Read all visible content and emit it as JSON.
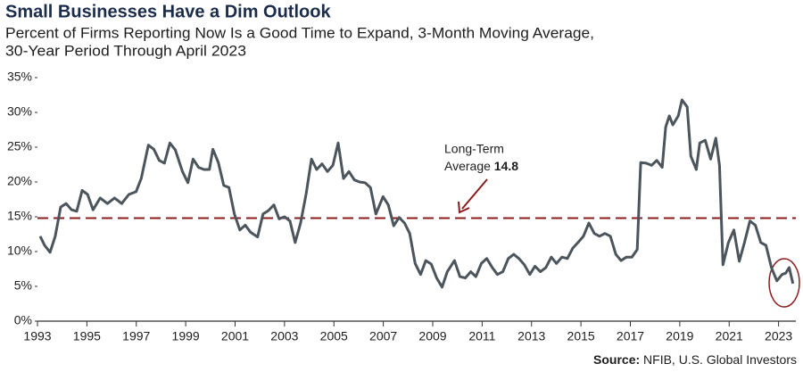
{
  "chart_data": {
    "type": "line",
    "title": "Small Businesses Have a Dim Outlook",
    "subtitle": [
      "Percent of Firms Reporting Now Is a Good Time to Expand, 3-Month Moving Average,",
      "30-Year Period Through April 2023"
    ],
    "source_label": "Source:",
    "source": "NFIB, U.S. Global Investors",
    "color": "#4b555b",
    "x": [
      1993.11,
      1993.29,
      1993.51,
      1993.72,
      1993.94,
      1994.16,
      1994.38,
      1994.59,
      1994.81,
      1995.03,
      1995.25,
      1995.54,
      1995.83,
      1996.12,
      1996.41,
      1996.7,
      1996.99,
      1997.2,
      1997.49,
      1997.71,
      1997.93,
      1998.14,
      1998.36,
      1998.58,
      1998.87,
      1999.09,
      1999.3,
      1999.52,
      1999.74,
      1999.96,
      2000.1,
      2000.32,
      2000.54,
      2000.75,
      2000.97,
      2001.19,
      2001.41,
      2001.62,
      2001.91,
      2002.13,
      2002.35,
      2002.57,
      2002.78,
      2003.0,
      2003.22,
      2003.43,
      2003.65,
      2003.87,
      2004.09,
      2004.3,
      2004.52,
      2004.74,
      2004.96,
      2005.17,
      2005.39,
      2005.61,
      2005.83,
      2006.04,
      2006.26,
      2006.48,
      2006.7,
      2006.99,
      2007.2,
      2007.42,
      2007.64,
      2007.86,
      2008.07,
      2008.29,
      2008.51,
      2008.72,
      2008.94,
      2009.16,
      2009.38,
      2009.59,
      2009.88,
      2010.1,
      2010.32,
      2010.54,
      2010.75,
      2010.97,
      2011.19,
      2011.41,
      2011.62,
      2011.84,
      2012.06,
      2012.28,
      2012.49,
      2012.71,
      2012.93,
      2013.14,
      2013.36,
      2013.58,
      2013.8,
      2014.01,
      2014.23,
      2014.45,
      2014.67,
      2014.88,
      2015.1,
      2015.32,
      2015.54,
      2015.75,
      2015.97,
      2016.19,
      2016.41,
      2016.62,
      2016.84,
      2017.06,
      2017.28,
      2017.42,
      2017.64,
      2017.86,
      2018.07,
      2018.29,
      2018.43,
      2018.58,
      2018.72,
      2018.94,
      2019.09,
      2019.3,
      2019.45,
      2019.67,
      2019.81,
      2020.03,
      2020.25,
      2020.46,
      2020.61,
      2020.75,
      2020.97,
      2021.19,
      2021.41,
      2021.62,
      2021.84,
      2022.06,
      2022.28,
      2022.49,
      2022.71,
      2022.93,
      2023.14,
      2023.29,
      2023.43,
      2023.58
    ],
    "values": [
      12.2,
      10.9,
      9.9,
      12.2,
      16.4,
      16.9,
      16.0,
      15.8,
      18.8,
      18.2,
      16.0,
      17.7,
      16.9,
      17.7,
      16.9,
      18.2,
      18.6,
      20.5,
      25.3,
      24.7,
      23.1,
      22.7,
      25.6,
      24.6,
      21.5,
      19.9,
      23.3,
      22.1,
      21.8,
      21.8,
      24.7,
      22.8,
      19.5,
      19.2,
      15.4,
      13.1,
      13.8,
      12.8,
      12.1,
      15.4,
      15.9,
      16.7,
      14.7,
      15.0,
      14.4,
      11.3,
      14.1,
      18.2,
      23.3,
      21.8,
      22.6,
      21.5,
      22.4,
      25.6,
      20.5,
      21.5,
      20.3,
      20.0,
      19.9,
      19.2,
      15.4,
      17.9,
      16.7,
      13.7,
      14.9,
      14.1,
      12.6,
      8.3,
      6.7,
      8.7,
      8.2,
      6.2,
      4.9,
      7.1,
      8.7,
      6.4,
      6.2,
      7.1,
      6.4,
      8.3,
      9.0,
      7.7,
      6.7,
      7.1,
      9.0,
      9.6,
      9.0,
      8.1,
      6.7,
      7.9,
      7.1,
      7.7,
      9.2,
      8.3,
      9.2,
      9.0,
      10.5,
      11.3,
      12.2,
      14.1,
      12.6,
      12.2,
      12.6,
      12.2,
      9.6,
      8.7,
      9.2,
      9.2,
      10.3,
      22.8,
      22.7,
      22.4,
      23.1,
      22.1,
      27.9,
      29.5,
      28.2,
      29.5,
      31.8,
      30.8,
      23.7,
      21.8,
      25.6,
      26.0,
      23.3,
      26.3,
      22.4,
      8.1,
      11.3,
      13.1,
      8.6,
      11.3,
      14.4,
      13.8,
      11.3,
      10.9,
      7.7,
      5.8,
      6.7,
      6.9,
      7.7,
      5.4
    ],
    "xlim": [
      1993,
      2023.7
    ],
    "xticks": [
      1993,
      1995,
      1997,
      1999,
      2001,
      2003,
      2005,
      2007,
      2009,
      2011,
      2013,
      2015,
      2017,
      2019,
      2021,
      2023
    ],
    "ylim": [
      0,
      35
    ],
    "yticks": [
      {
        "value": 0,
        "label": "0%"
      },
      {
        "value": 5,
        "label": "5%"
      },
      {
        "value": 10,
        "label": "10%"
      },
      {
        "value": 15,
        "label": "15%"
      },
      {
        "value": 20,
        "label": "20%"
      },
      {
        "value": 25,
        "label": "25%"
      },
      {
        "value": 30,
        "label": "30%"
      },
      {
        "value": 35,
        "label": "35%"
      }
    ],
    "reference": {
      "value": 14.8,
      "color": "#8b1c1c",
      "label_lines": [
        "Long-Term",
        "Average"
      ]
    }
  }
}
